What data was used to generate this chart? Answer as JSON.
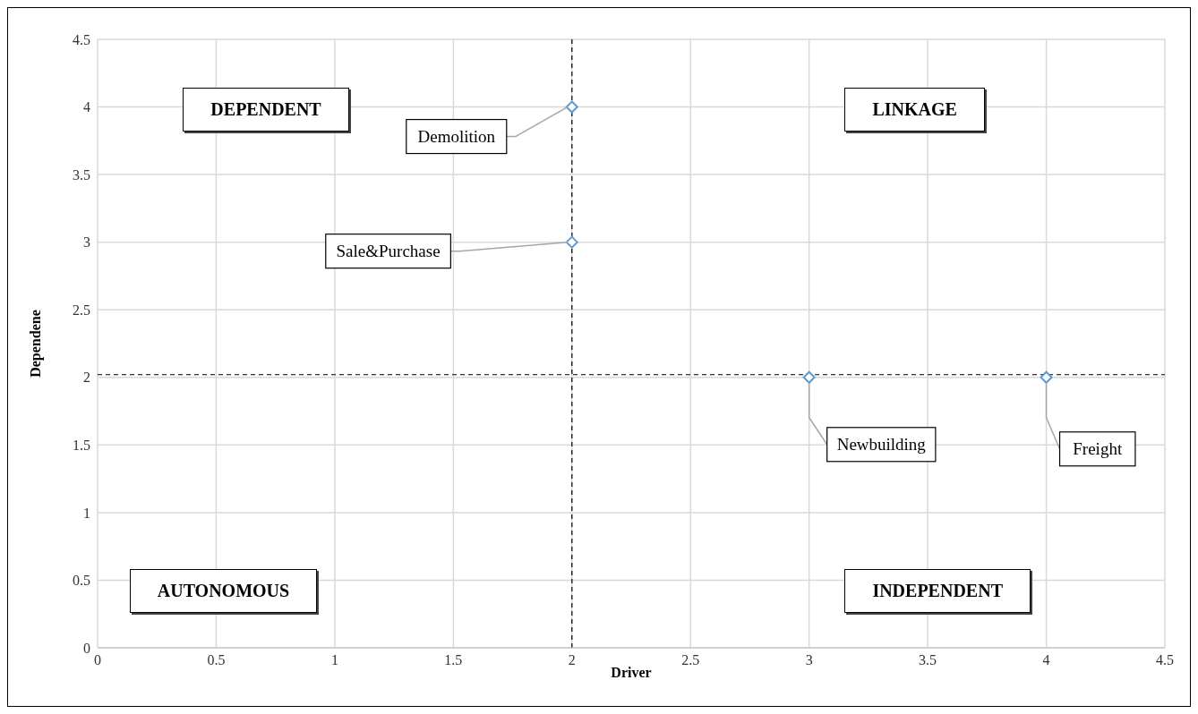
{
  "chart_data": {
    "type": "scatter",
    "xlabel": "Driver",
    "ylabel": "Dependene",
    "x": [
      2,
      2,
      3,
      4
    ],
    "series": [
      {
        "color": "#5b9bd5",
        "values": [
          4,
          3,
          2,
          2
        ]
      }
    ],
    "marker": "diamond",
    "grid": true,
    "legend": false,
    "xlim": [
      0,
      4.5
    ],
    "xticks": [
      0,
      0.5,
      1,
      1.5,
      2,
      2.5,
      3,
      3.5,
      4,
      4.5
    ],
    "ylim": [
      0,
      4.5
    ],
    "yticks": [
      0,
      0.5,
      1,
      1.5,
      2,
      2.5,
      3,
      3.5,
      4,
      4.5
    ],
    "ref_lines": [
      {
        "axis": "x",
        "value": 2,
        "color": "#000000",
        "line_style": "dashed"
      },
      {
        "axis": "y",
        "value": 2.02,
        "color": "#000000",
        "line_style": "dashed"
      }
    ],
    "annotations": [
      {
        "text": "Demolition",
        "x": 2,
        "y": 4
      },
      {
        "text": "Sale&Purchase",
        "x": 2,
        "y": 3
      },
      {
        "text": "Newbuilding",
        "x": 3,
        "y": 2
      },
      {
        "text": "Freight",
        "x": 4,
        "y": 2
      },
      "DEPENDENT",
      "LINKAGE",
      "AUTONOMOUS",
      "INDEPENDENT"
    ]
  }
}
